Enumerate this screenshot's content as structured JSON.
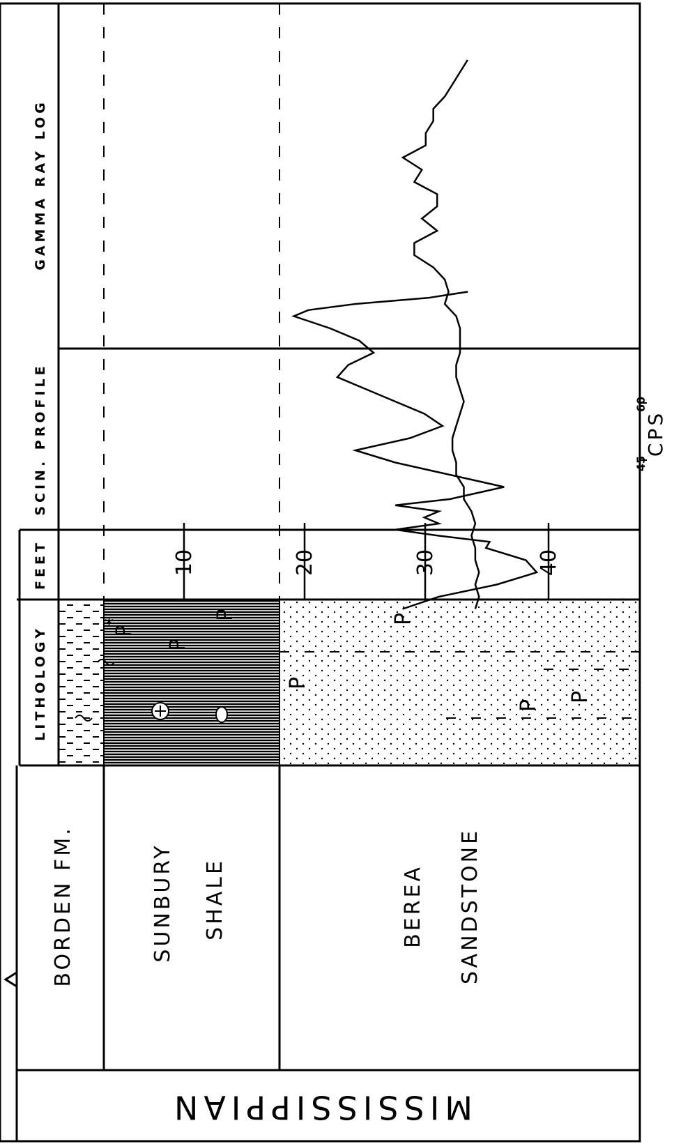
{
  "era": "MISSISSIPPIAN",
  "formations": [
    {
      "name": "BORDEN FM."
    },
    {
      "name_line1": "SUNBURY",
      "name_line2": "SHALE"
    },
    {
      "name_line1": "BEREA",
      "name_line2": "SANDSTONE"
    }
  ],
  "column_headers": {
    "lithology": "LITHOLOGY",
    "feet": "FEET",
    "scin_profile": "SCIN. PROFILE",
    "gamma_ray_log": "GAMMA RAY LOG"
  },
  "feet_ticks": [
    "10",
    "20",
    "30",
    "40"
  ],
  "cps_axis": {
    "label": "CPS",
    "tick_45": "45",
    "tick_60": "60"
  },
  "lithology_symbol": "P",
  "chart_data": {
    "type": "line",
    "series": [
      {
        "name": "SCIN. PROFILE",
        "x_feet": [
          0,
          2,
          3,
          4,
          5,
          6,
          7,
          8,
          9,
          10,
          11,
          12,
          13,
          14,
          15,
          16,
          17,
          18,
          19,
          20,
          21,
          22,
          23,
          24,
          25,
          26,
          27,
          28,
          29,
          30,
          31,
          32,
          33,
          34,
          35,
          36,
          37,
          38,
          39,
          40,
          41,
          42,
          43,
          44,
          45
        ],
        "y_cps": [
          43,
          47,
          49,
          52,
          52,
          54,
          54,
          60,
          55,
          57,
          51,
          51,
          55,
          51,
          57,
          57,
          52,
          49,
          48,
          49,
          46,
          45,
          45,
          45,
          46,
          46,
          45,
          44,
          45,
          46,
          47,
          47,
          46,
          46,
          44,
          44,
          42,
          41,
          42,
          41,
          41,
          40,
          41,
          40,
          41
        ]
      },
      {
        "name": "GAMMA RAY LOG",
        "x_feet": [
          19,
          19.5,
          20,
          20.5,
          21,
          22,
          23,
          24,
          25,
          26,
          27,
          28,
          29,
          30,
          31,
          32,
          33,
          34,
          35,
          36,
          36.5,
          37,
          37.5,
          38,
          38.5,
          39,
          39.5,
          40,
          41,
          42,
          43,
          44,
          45
        ],
        "y_relative": [
          0.44,
          0.55,
          0.75,
          0.88,
          0.92,
          0.82,
          0.74,
          0.7,
          0.77,
          0.8,
          0.72,
          0.64,
          0.56,
          0.51,
          0.6,
          0.75,
          0.64,
          0.49,
          0.34,
          0.49,
          0.64,
          0.52,
          0.56,
          0.52,
          0.64,
          0.52,
          0.38,
          0.39,
          0.28,
          0.25,
          0.36,
          0.52,
          0.62
        ]
      }
    ],
    "xlabel": "FEET",
    "ylabel": "CPS",
    "xlim": [
      0,
      45
    ]
  }
}
